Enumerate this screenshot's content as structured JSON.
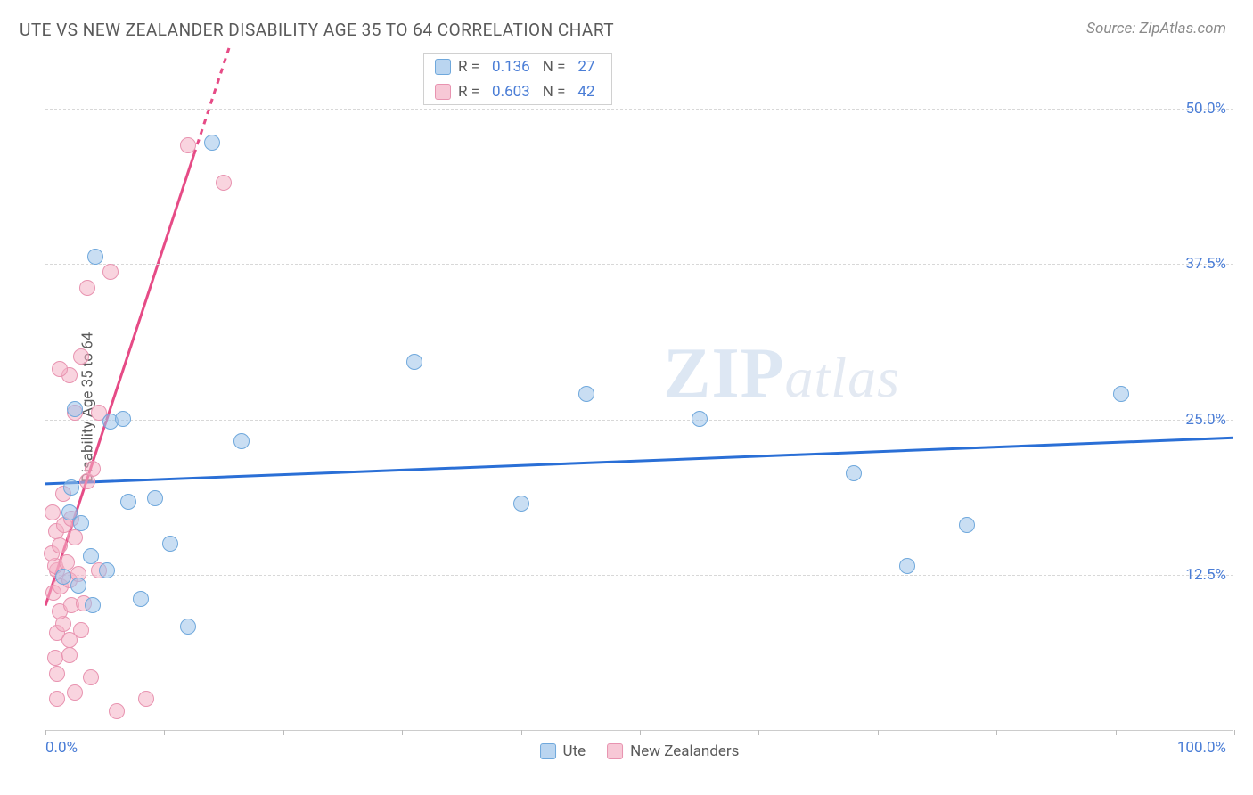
{
  "header": {
    "title": "UTE VS NEW ZEALANDER DISABILITY AGE 35 TO 64 CORRELATION CHART",
    "source": "Source: ZipAtlas.com"
  },
  "watermark": {
    "part1": "ZIP",
    "part2": "atlas"
  },
  "chart": {
    "type": "scatter",
    "ylabel": "Disability Age 35 to 64",
    "xlim": [
      0,
      100
    ],
    "ylim": [
      0,
      55
    ],
    "background_color": "#ffffff",
    "grid_color": "#d8d8d8",
    "axis_color": "#cccccc",
    "point_radius": 9,
    "xticks": [
      {
        "pos": 0,
        "label": "0.0%"
      },
      {
        "pos": 10
      },
      {
        "pos": 20
      },
      {
        "pos": 30
      },
      {
        "pos": 40
      },
      {
        "pos": 50
      },
      {
        "pos": 60
      },
      {
        "pos": 70
      },
      {
        "pos": 80
      },
      {
        "pos": 90
      },
      {
        "pos": 100,
        "label": "100.0%"
      }
    ],
    "yticks": [
      {
        "pos": 12.5,
        "label": "12.5%"
      },
      {
        "pos": 25.0,
        "label": "25.0%"
      },
      {
        "pos": 37.5,
        "label": "37.5%"
      },
      {
        "pos": 50.0,
        "label": "50.0%"
      }
    ],
    "legend_top": [
      {
        "swatch": "blue",
        "r_label": "R =",
        "r_val": "0.136",
        "n_label": "N =",
        "n_val": "27"
      },
      {
        "swatch": "pink",
        "r_label": "R =",
        "r_val": "0.603",
        "n_label": "N =",
        "n_val": "42"
      }
    ],
    "legend_bottom": [
      {
        "swatch": "blue",
        "label": "Ute"
      },
      {
        "swatch": "pink",
        "label": "New Zealanders"
      }
    ],
    "series": [
      {
        "name": "Ute",
        "color_class": "pt-blue",
        "trend_color": "#2a6fd6",
        "trend_width": 3,
        "trend": {
          "x1": 0,
          "y1": 19.8,
          "x2": 100,
          "y2": 23.5
        },
        "points": [
          [
            2.5,
            25.8
          ],
          [
            4.2,
            38.0
          ],
          [
            14.0,
            47.2
          ],
          [
            5.5,
            24.8
          ],
          [
            9.2,
            18.6
          ],
          [
            7.0,
            18.3
          ],
          [
            16.5,
            23.2
          ],
          [
            40.0,
            18.2
          ],
          [
            31.0,
            29.6
          ],
          [
            68.0,
            20.6
          ],
          [
            55.0,
            25.0
          ],
          [
            45.5,
            27.0
          ],
          [
            90.5,
            27.0
          ],
          [
            72.5,
            13.2
          ],
          [
            77.5,
            16.5
          ],
          [
            4.0,
            10.0
          ],
          [
            8.0,
            10.5
          ],
          [
            12.0,
            8.3
          ],
          [
            10.5,
            15.0
          ],
          [
            2.0,
            17.5
          ],
          [
            3.0,
            16.6
          ],
          [
            3.8,
            14.0
          ],
          [
            5.2,
            12.8
          ],
          [
            2.2,
            19.5
          ],
          [
            6.5,
            25.0
          ],
          [
            1.5,
            12.3
          ],
          [
            2.8,
            11.6
          ]
        ]
      },
      {
        "name": "New Zealanders",
        "color_class": "pt-pink",
        "trend_color": "#e64b86",
        "trend_width": 3,
        "trend": {
          "x1": 0,
          "y1": 10.0,
          "x2": 15.5,
          "y2": 55.0
        },
        "trend_dashed_after_x": 12.5,
        "points": [
          [
            1.0,
            4.5
          ],
          [
            0.8,
            5.8
          ],
          [
            2.0,
            6.0
          ],
          [
            2.0,
            7.2
          ],
          [
            1.0,
            7.8
          ],
          [
            1.5,
            8.5
          ],
          [
            3.0,
            8.0
          ],
          [
            1.2,
            9.5
          ],
          [
            2.2,
            10.0
          ],
          [
            3.2,
            10.2
          ],
          [
            0.7,
            11.0
          ],
          [
            1.3,
            11.5
          ],
          [
            2.0,
            12.0
          ],
          [
            2.8,
            12.5
          ],
          [
            1.0,
            12.8
          ],
          [
            4.5,
            12.8
          ],
          [
            0.8,
            13.2
          ],
          [
            1.8,
            13.5
          ],
          [
            0.5,
            14.2
          ],
          [
            1.2,
            14.8
          ],
          [
            2.5,
            15.5
          ],
          [
            0.9,
            16.0
          ],
          [
            1.6,
            16.5
          ],
          [
            2.2,
            17.0
          ],
          [
            0.6,
            17.5
          ],
          [
            3.5,
            20.0
          ],
          [
            4.0,
            21.0
          ],
          [
            1.5,
            19.0
          ],
          [
            2.5,
            25.5
          ],
          [
            4.5,
            25.5
          ],
          [
            2.0,
            28.5
          ],
          [
            3.0,
            30.0
          ],
          [
            1.2,
            29.0
          ],
          [
            3.5,
            35.5
          ],
          [
            5.5,
            36.8
          ],
          [
            12.0,
            47.0
          ],
          [
            15.0,
            44.0
          ],
          [
            8.5,
            2.5
          ],
          [
            6.0,
            1.5
          ],
          [
            1.0,
            2.5
          ],
          [
            2.5,
            3.0
          ],
          [
            3.8,
            4.2
          ]
        ]
      }
    ]
  }
}
